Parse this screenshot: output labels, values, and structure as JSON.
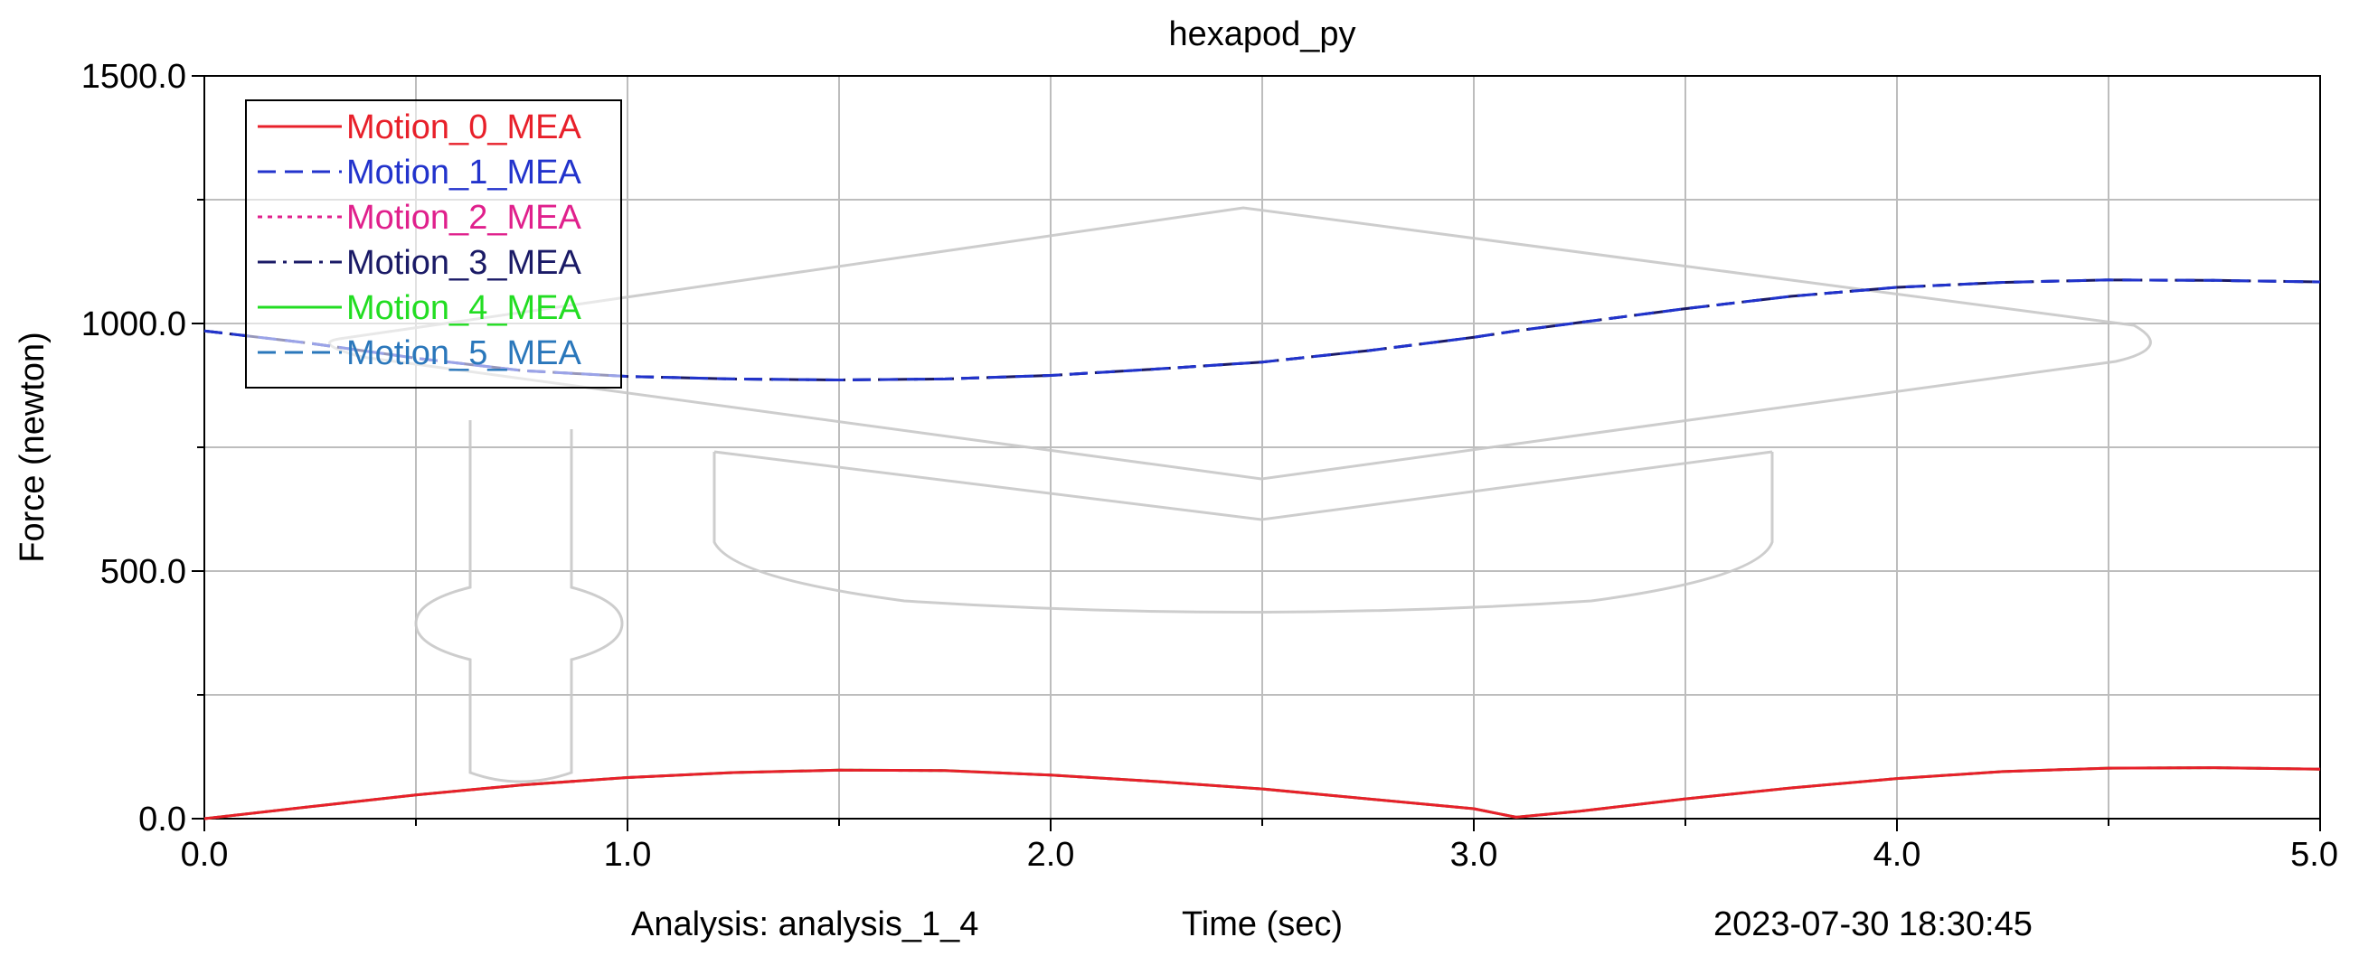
{
  "chart_data": {
    "type": "line",
    "title": "hexapod_py",
    "xlabel": "Time (sec)",
    "ylabel": "Force (newton)",
    "xlim": [
      0,
      5
    ],
    "ylim": [
      0,
      1500
    ],
    "x_ticks": [
      0,
      1,
      2,
      3,
      4,
      5
    ],
    "x_tick_labels": [
      "0.0",
      "1.0",
      "2.0",
      "3.0",
      "4.0",
      "5.0"
    ],
    "x_minor_ticks": [
      0.5,
      1.5,
      2.5,
      3.5,
      4.5
    ],
    "y_ticks": [
      0,
      500,
      1000,
      1500
    ],
    "y_tick_labels": [
      "0.0",
      "500.0",
      "1000.0",
      "1500.0"
    ],
    "y_minor_ticks": [
      250,
      750,
      1250
    ],
    "grid": true,
    "legend_position": "top-left",
    "footer": {
      "analysis": "Analysis:  analysis_1_4",
      "timestamp": "2023-07-30 18:30:45"
    },
    "x": [
      0,
      0.25,
      0.5,
      0.75,
      1.0,
      1.25,
      1.5,
      1.75,
      2.0,
      2.25,
      2.5,
      2.75,
      3.0,
      3.1,
      3.25,
      3.5,
      3.75,
      4.0,
      4.25,
      4.5,
      4.75,
      5.0
    ],
    "series": [
      {
        "name": "Motion_0_MEA",
        "color": "#e8202a",
        "dash": "solid",
        "values": [
          0,
          24,
          48,
          68,
          83,
          93,
          98,
          97,
          88,
          75,
          60,
          40,
          20,
          3,
          15,
          40,
          62,
          81,
          95,
          102,
          103,
          100
        ]
      },
      {
        "name": "Motion_1_MEA",
        "color": "#2233cc",
        "dash": "dash",
        "values": [
          985,
          960,
          930,
          905,
          893,
          888,
          886,
          888,
          895,
          908,
          922,
          945,
          972,
          985,
          1002,
          1030,
          1055,
          1073,
          1083,
          1088,
          1087,
          1084
        ]
      },
      {
        "name": "Motion_2_MEA",
        "color": "#e0208c",
        "dash": "dot",
        "values": [
          0,
          24,
          48,
          68,
          83,
          93,
          98,
          97,
          88,
          75,
          60,
          40,
          20,
          3,
          15,
          40,
          62,
          81,
          95,
          102,
          103,
          100
        ]
      },
      {
        "name": "Motion_3_MEA",
        "color": "#1a1a66",
        "dash": "dashdot",
        "values": [
          985,
          960,
          930,
          905,
          893,
          888,
          886,
          888,
          895,
          908,
          922,
          945,
          972,
          985,
          1002,
          1030,
          1055,
          1073,
          1083,
          1088,
          1087,
          1084
        ]
      },
      {
        "name": "Motion_4_MEA",
        "color": "#22dd22",
        "dash": "solid",
        "values": [
          0,
          24,
          48,
          68,
          83,
          93,
          98,
          97,
          88,
          75,
          60,
          40,
          20,
          3,
          15,
          40,
          62,
          81,
          95,
          102,
          103,
          100
        ]
      },
      {
        "name": "Motion_5_MEA",
        "color": "#2a77bb",
        "dash": "dash",
        "values": [
          985,
          960,
          930,
          905,
          893,
          888,
          886,
          888,
          895,
          908,
          922,
          945,
          972,
          985,
          1002,
          1030,
          1055,
          1073,
          1083,
          1088,
          1087,
          1084
        ]
      }
    ]
  }
}
